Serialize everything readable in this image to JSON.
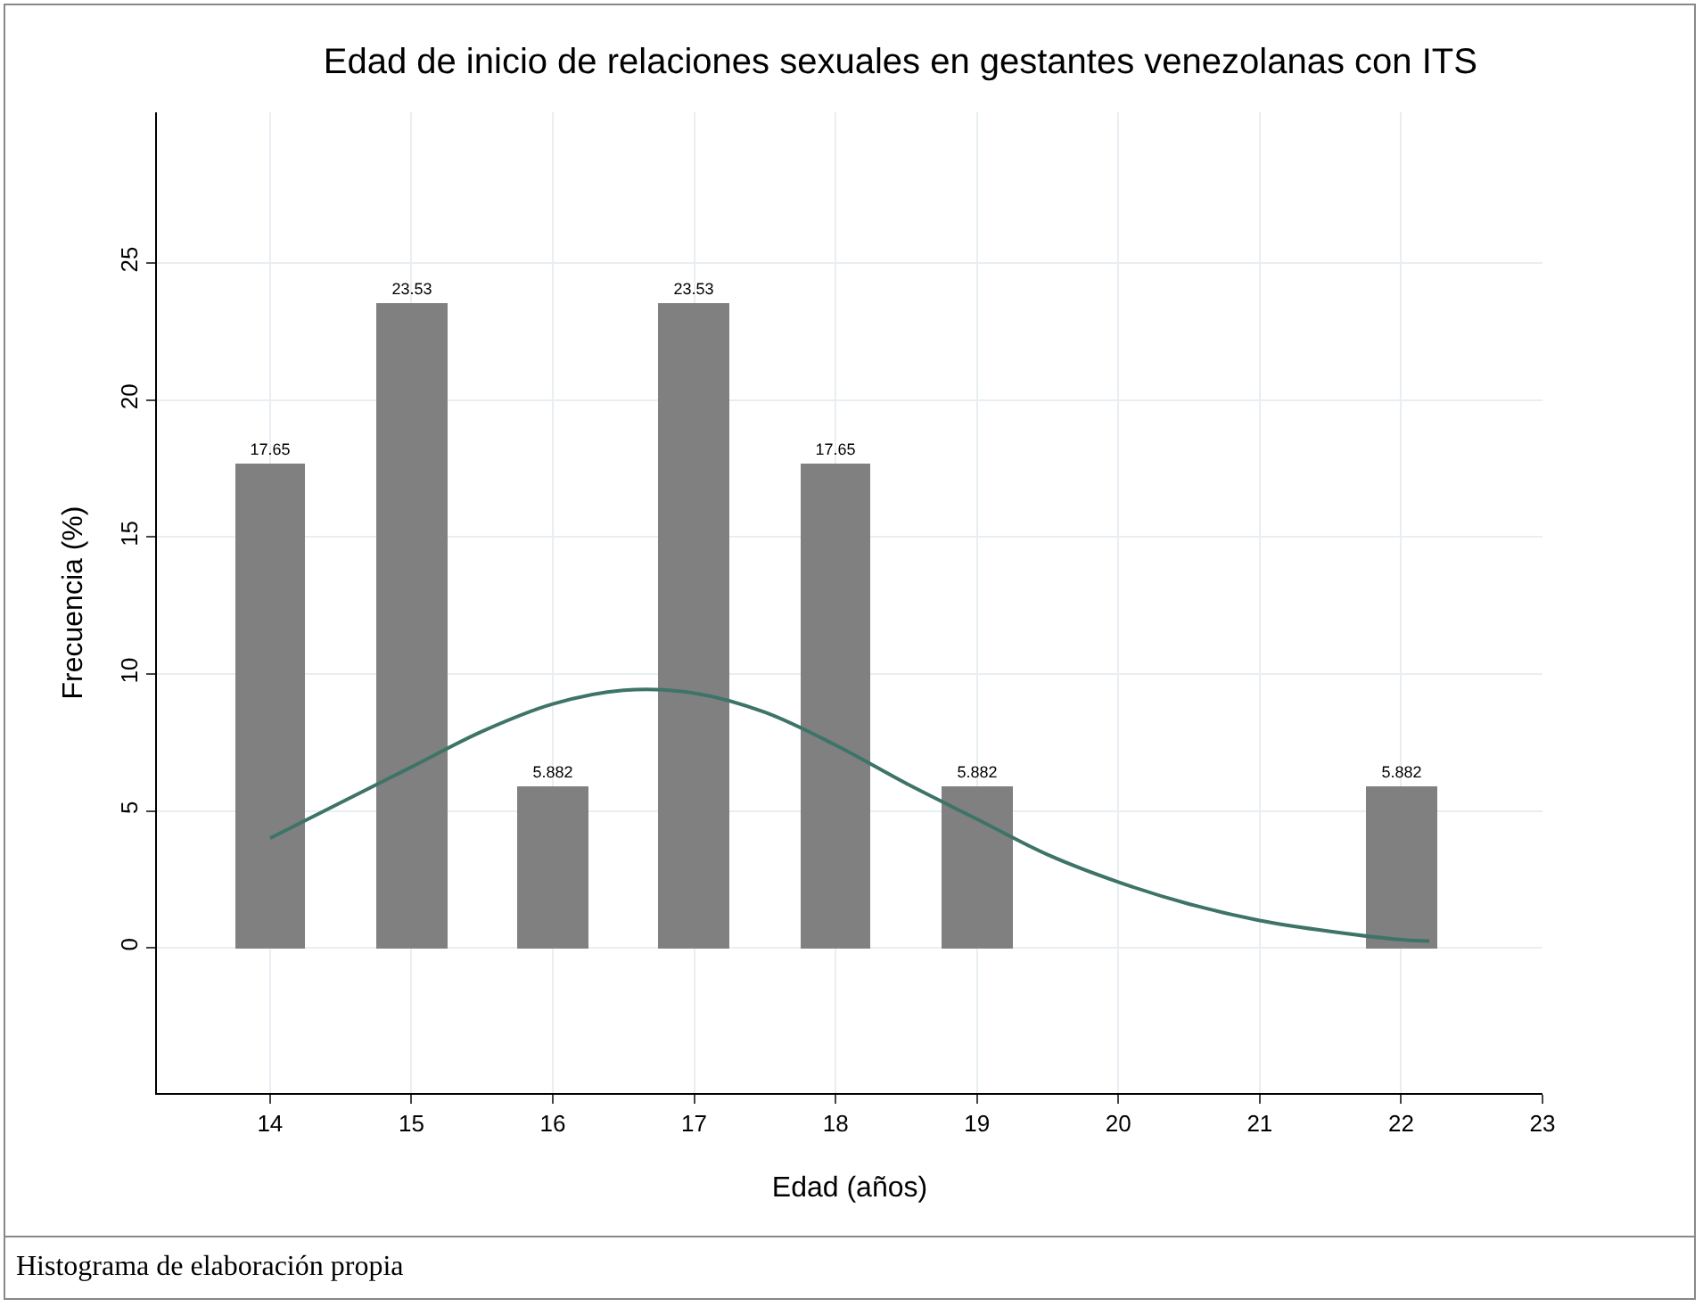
{
  "chart_data": {
    "type": "bar",
    "title": "Edad de inicio de relaciones sexuales en gestantes venezolanas con ITS",
    "xlabel": "Edad (años)",
    "ylabel": "Frecuencia (%)",
    "x": [
      14,
      15,
      16,
      17,
      18,
      19,
      22
    ],
    "series": [
      {
        "color": "#808080",
        "values": [
          17.65,
          23.53,
          5.882,
          23.53,
          17.65,
          5.882,
          5.882
        ],
        "value_labels": [
          "17.65",
          "23.53",
          "5.882",
          "23.53",
          "17.65",
          "5.882",
          "5.882"
        ]
      },
      {
        "type": "line",
        "color": "#3e7468",
        "x": [
          14,
          14.5,
          15,
          15.5,
          16,
          16.5,
          17,
          17.5,
          18,
          18.5,
          19,
          19.5,
          20,
          20.5,
          21,
          21.5,
          22,
          22.2
        ],
        "values": [
          4.0,
          5.3,
          6.6,
          7.9,
          8.9,
          9.4,
          9.3,
          8.6,
          7.4,
          6.0,
          4.7,
          3.4,
          2.4,
          1.6,
          1.0,
          0.6,
          0.3,
          0.25
        ]
      }
    ],
    "xlim": [
      13.2,
      23
    ],
    "xticks": [
      14,
      15,
      16,
      17,
      18,
      19,
      20,
      21,
      22,
      23
    ],
    "ylim": [
      -5.3,
      30.5
    ],
    "yticks": [
      0,
      5,
      10,
      15,
      20,
      25
    ],
    "grid": true,
    "legend": false,
    "marker": "none",
    "line_style": "solid",
    "annotations": [
      "Histograma de elaboración propia"
    ]
  }
}
